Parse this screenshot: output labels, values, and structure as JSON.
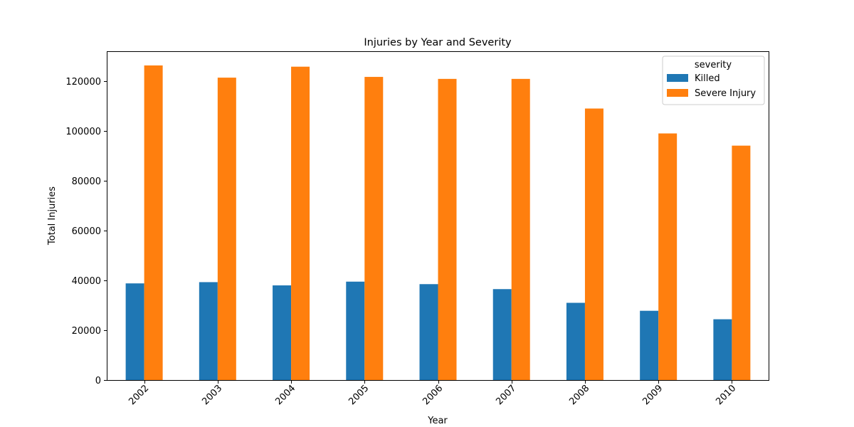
{
  "chart_data": {
    "type": "bar",
    "title": "Injuries by Year and Severity",
    "xlabel": "Year",
    "ylabel": "Total Injuries",
    "categories": [
      "2002",
      "2003",
      "2004",
      "2005",
      "2006",
      "2007",
      "2008",
      "2009",
      "2010"
    ],
    "series": [
      {
        "name": "Killed",
        "color": "#1f77b4",
        "values": [
          38800,
          39300,
          38000,
          39500,
          38500,
          36500,
          31000,
          27800,
          24400
        ]
      },
      {
        "name": "Severe Injury",
        "color": "#ff7f0e",
        "values": [
          126300,
          121400,
          125800,
          121700,
          120900,
          120900,
          109000,
          99000,
          94100
        ]
      }
    ],
    "ylim": [
      0,
      132000
    ],
    "yticks": [
      0,
      20000,
      40000,
      60000,
      80000,
      100000,
      120000
    ],
    "ytick_labels": [
      "0",
      "20000",
      "40000",
      "60000",
      "80000",
      "100000",
      "120000"
    ],
    "grid": false,
    "legend": {
      "title": "severity",
      "position": "top-right"
    }
  }
}
